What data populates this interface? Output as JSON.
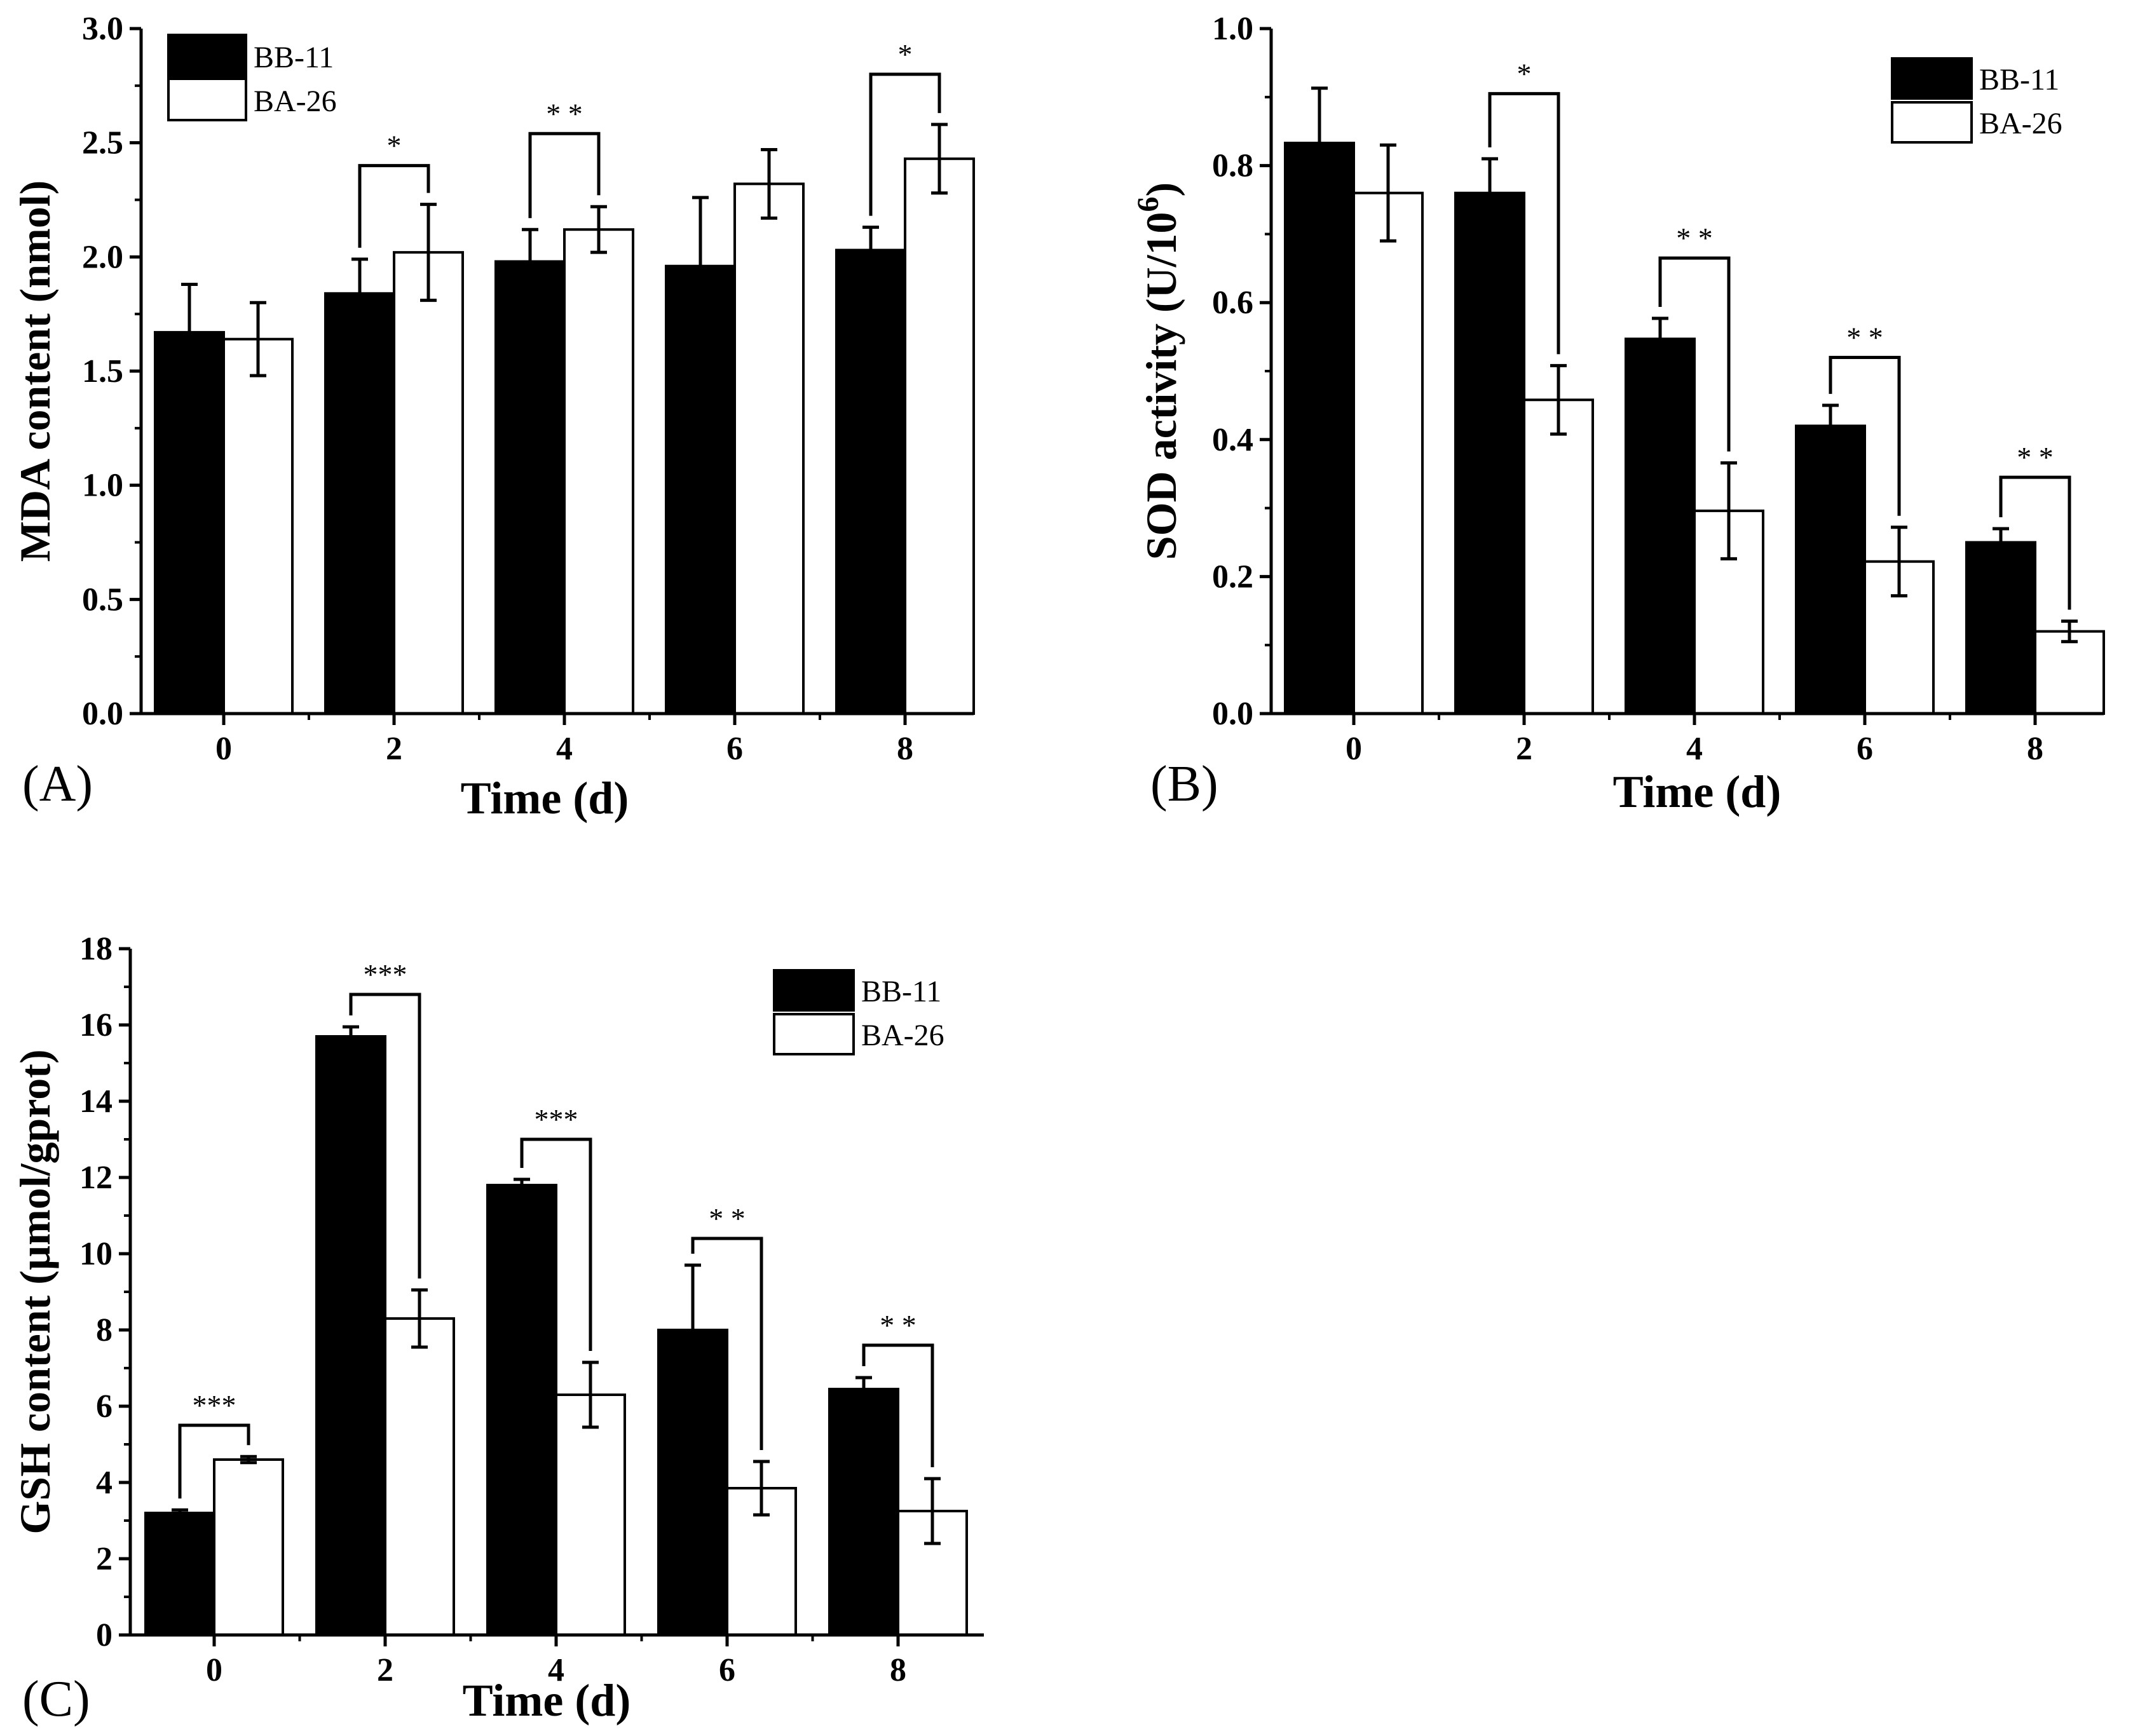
{
  "figure": {
    "panels": [
      "(A)",
      "(B)",
      "(C)"
    ]
  },
  "chart_data": [
    {
      "type": "bar",
      "panel_label": "(A)",
      "title": "",
      "xlabel": "Time (d)",
      "ylabel": "MDA content (nmol)",
      "categories": [
        "0",
        "2",
        "4",
        "6",
        "8"
      ],
      "ylim": [
        0,
        3.0
      ],
      "yticks": [
        "0.0",
        "0.5",
        "1.0",
        "1.5",
        "2.0",
        "2.5",
        "3.0"
      ],
      "grid": false,
      "legend_position": "top-left",
      "series": [
        {
          "name": "BB-11",
          "fill": "#000000",
          "values": [
            1.67,
            1.84,
            1.98,
            1.96,
            2.03
          ],
          "errors": [
            0.21,
            0.15,
            0.14,
            0.3,
            0.1
          ]
        },
        {
          "name": "BA-26",
          "fill": "#ffffff",
          "values": [
            1.64,
            2.02,
            2.12,
            2.32,
            2.43
          ],
          "errors": [
            0.16,
            0.21,
            0.1,
            0.15,
            0.15
          ]
        }
      ],
      "significance": [
        {
          "category": "2",
          "label": "*",
          "bracket_y": 2.4
        },
        {
          "category": "4",
          "label": "* *",
          "bracket_y": 2.54
        },
        {
          "category": "8",
          "label": "*",
          "bracket_y": 2.8
        }
      ]
    },
    {
      "type": "bar",
      "panel_label": "(B)",
      "title": "",
      "xlabel": "Time (d)",
      "ylabel": "SOD activity (U/10",
      "ylabel_superscript": "6",
      "ylabel_suffix": ")",
      "categories": [
        "0",
        "2",
        "4",
        "6",
        "8"
      ],
      "ylim": [
        0,
        1.0
      ],
      "yticks": [
        "0.0",
        "0.2",
        "0.4",
        "0.6",
        "0.8",
        "1.0"
      ],
      "grid": false,
      "legend_position": "top-right",
      "series": [
        {
          "name": "BB-11",
          "fill": "#000000",
          "values": [
            0.833,
            0.76,
            0.547,
            0.42,
            0.25
          ],
          "errors": [
            0.08,
            0.05,
            0.03,
            0.03,
            0.02
          ]
        },
        {
          "name": "BA-26",
          "fill": "#ffffff",
          "values": [
            0.76,
            0.458,
            0.296,
            0.222,
            0.12
          ],
          "errors": [
            0.07,
            0.05,
            0.07,
            0.05,
            0.015
          ]
        }
      ],
      "significance": [
        {
          "category": "2",
          "label": "*",
          "bracket_y": 0.905
        },
        {
          "category": "4",
          "label": "* *",
          "bracket_y": 0.665
        },
        {
          "category": "6",
          "label": "* *",
          "bracket_y": 0.52
        },
        {
          "category": "8",
          "label": "* *",
          "bracket_y": 0.345
        }
      ]
    },
    {
      "type": "bar",
      "panel_label": "(C)",
      "title": "",
      "xlabel": "Time (d)",
      "ylabel": "GSH content (µmol/gprot)",
      "categories": [
        "0",
        "2",
        "4",
        "6",
        "8"
      ],
      "ylim": [
        0,
        18
      ],
      "yticks": [
        "0",
        "2",
        "4",
        "6",
        "8",
        "10",
        "12",
        "14",
        "16",
        "18"
      ],
      "grid": false,
      "legend_position": "top-right",
      "series": [
        {
          "name": "BB-11",
          "fill": "#000000",
          "values": [
            3.2,
            15.7,
            11.8,
            8.0,
            6.45
          ],
          "errors": [
            0.08,
            0.25,
            0.15,
            1.7,
            0.3
          ]
        },
        {
          "name": "BA-26",
          "fill": "#ffffff",
          "values": [
            4.6,
            8.3,
            6.3,
            3.85,
            3.25
          ],
          "errors": [
            0.08,
            0.75,
            0.85,
            0.7,
            0.85
          ]
        }
      ],
      "significance": [
        {
          "category": "0",
          "label": "***",
          "bracket_y": 5.5
        },
        {
          "category": "2",
          "label": "***",
          "bracket_y": 16.8
        },
        {
          "category": "4",
          "label": "***",
          "bracket_y": 13.0
        },
        {
          "category": "6",
          "label": "* *",
          "bracket_y": 10.4
        },
        {
          "category": "8",
          "label": "* *",
          "bracket_y": 7.6
        }
      ]
    }
  ]
}
